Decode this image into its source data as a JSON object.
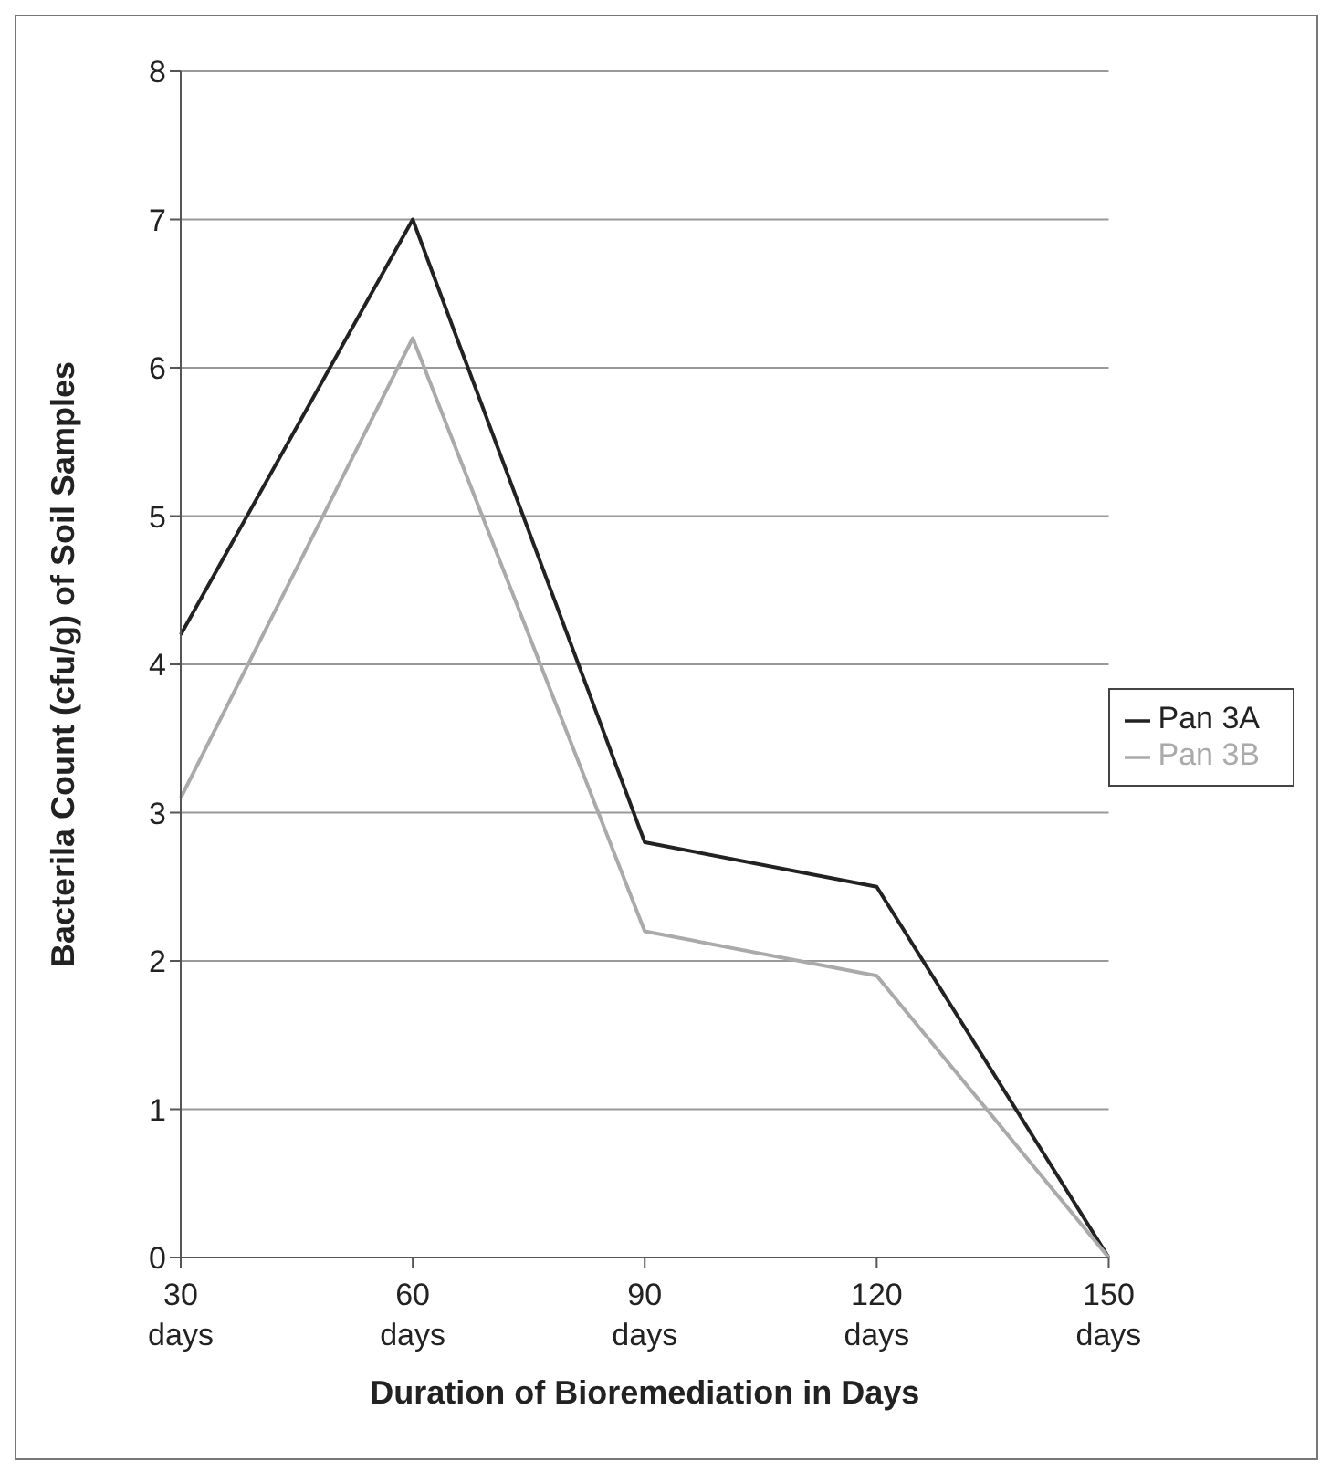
{
  "chart_data": {
    "type": "line",
    "xlabel": "Duration of Bioremediation in Days",
    "ylabel": "Bacterila Count (cfu/g) of Soil Samples",
    "categories": [
      "30 days",
      "60 days",
      "90 days",
      "120 days",
      "150 days"
    ],
    "series": [
      {
        "name": "Pan 3A",
        "color": "#222222",
        "values": [
          4.2,
          7,
          2.8,
          2.5,
          0
        ]
      },
      {
        "name": "Pan 3B",
        "color": "#aaaaaa",
        "values": [
          3.1,
          6.2,
          2.2,
          1.9,
          0
        ]
      }
    ],
    "ylim": [
      0,
      8
    ],
    "yticks": [
      0,
      1,
      2,
      3,
      4,
      5,
      6,
      7,
      8
    ],
    "grid": "y",
    "legend": "right",
    "marker": "none",
    "line_style": "solid"
  }
}
